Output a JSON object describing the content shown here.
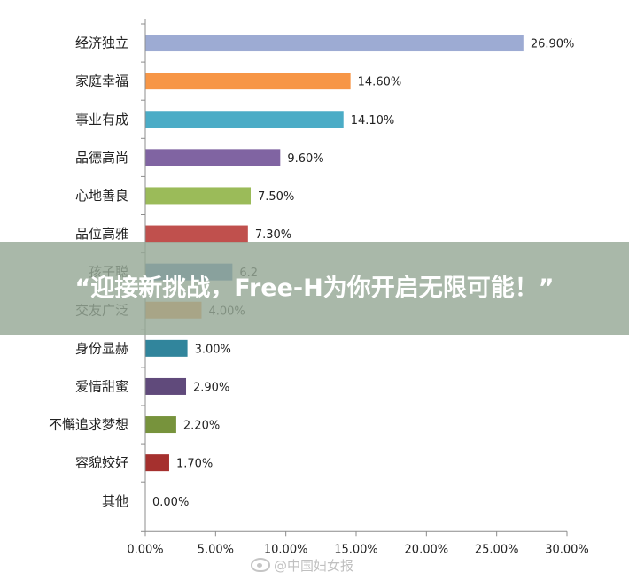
{
  "chart_data": {
    "type": "bar",
    "orientation": "horizontal",
    "categories": [
      "经济独立",
      "家庭幸福",
      "事业有成",
      "品德高尚",
      "心地善良",
      "品位高雅",
      "孩子聪",
      "交友广泛",
      "身份显赫",
      "爱情甜蜜",
      "不懈追求梦想",
      "容貌姣好",
      "其他"
    ],
    "values": [
      26.9,
      14.6,
      14.1,
      9.6,
      7.5,
      7.3,
      6.2,
      4.0,
      3.0,
      2.9,
      2.2,
      1.7,
      0.0
    ],
    "value_labels": [
      "26.90%",
      "14.60%",
      "14.10%",
      "9.60%",
      "7.50%",
      "7.30%",
      "6.2",
      "4.00%",
      "3.00%",
      "2.90%",
      "2.20%",
      "1.70%",
      "0.00%"
    ],
    "colors": [
      "#9dabd3",
      "#f79646",
      "#4bacc6",
      "#8064a2",
      "#9bbb59",
      "#c0504d",
      "#4f81bd",
      "#f79646",
      "#31859c",
      "#604a7b",
      "#77933c",
      "#a5302e",
      "#9dabd3"
    ],
    "xlim": [
      0,
      30
    ],
    "x_ticks": [
      "0.00%",
      "5.00%",
      "10.00%",
      "15.00%",
      "20.00%",
      "25.00%",
      "30.00%"
    ],
    "grid": false
  },
  "banner": {
    "text": "“迎接新挑战，Free-H为你开启无限可能！”"
  },
  "watermark": {
    "text": "@中国妇女报"
  }
}
